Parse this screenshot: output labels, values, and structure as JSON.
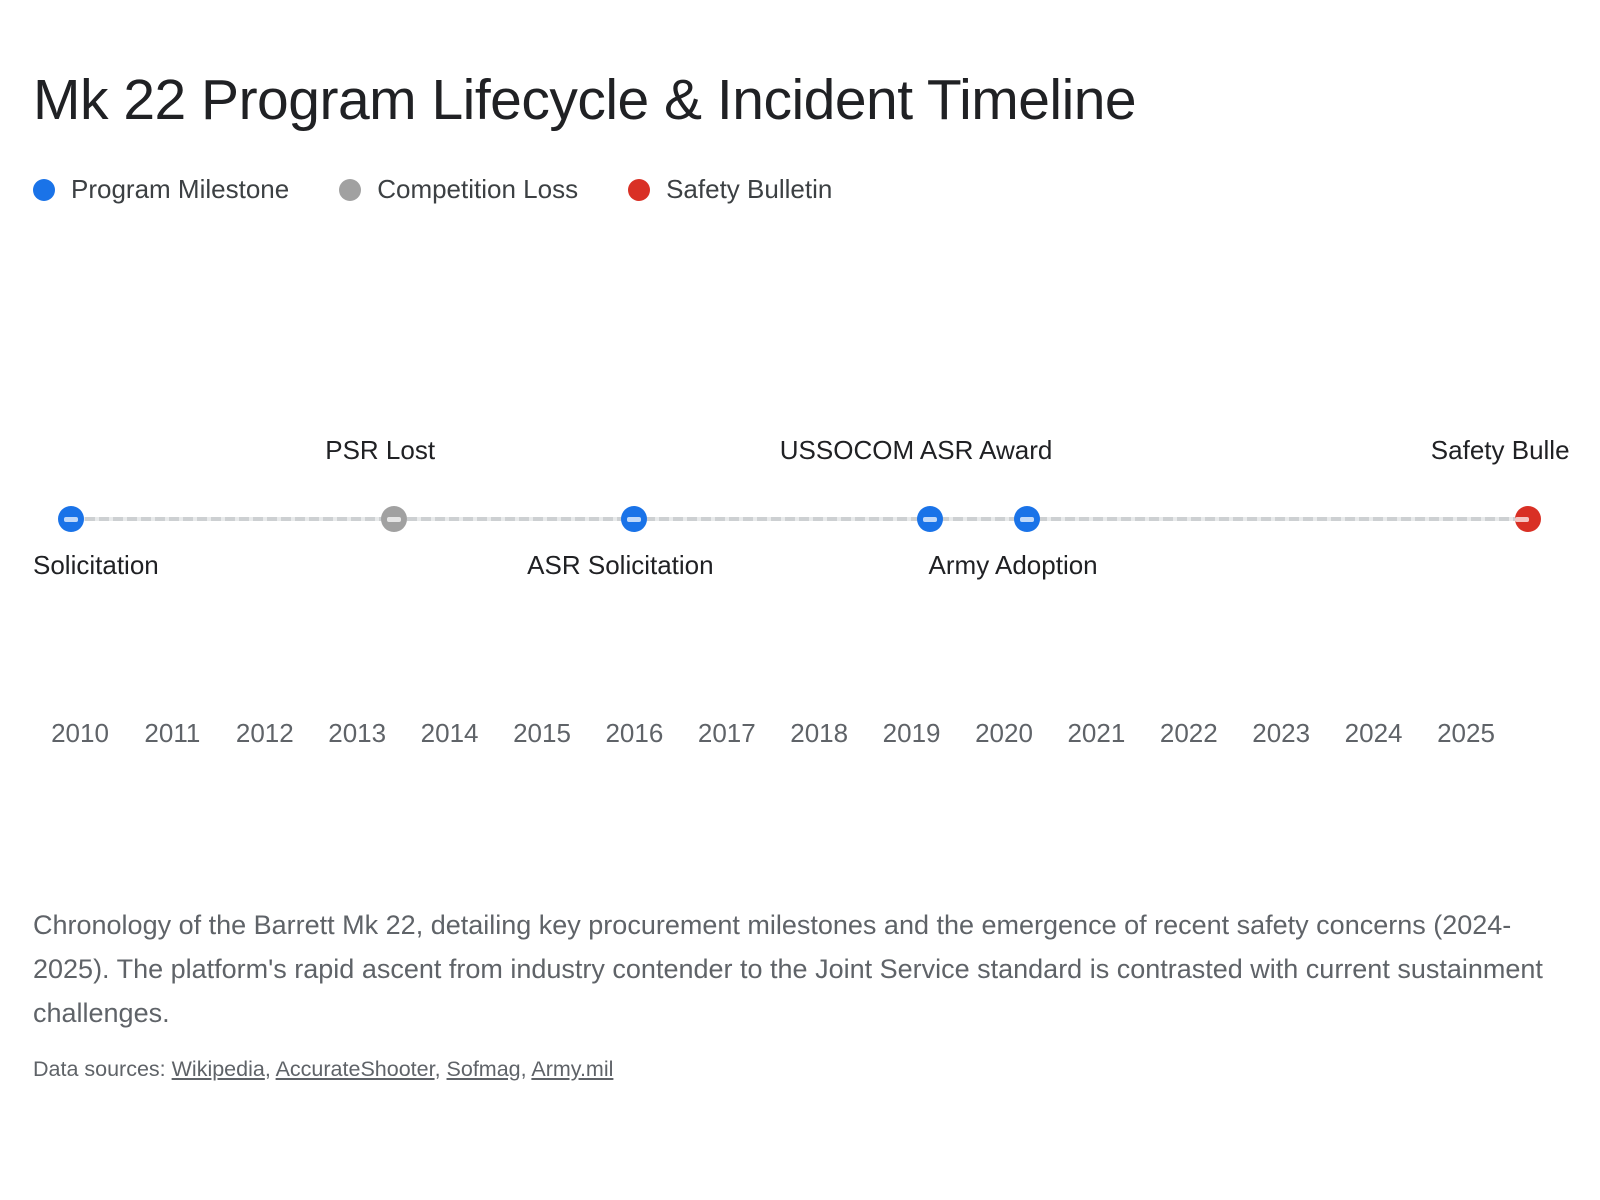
{
  "chart_data": {
    "type": "timeline",
    "title": "Mk 22 Program Lifecycle & Incident Timeline",
    "legend": [
      {
        "label": "Program Milestone",
        "color": "#1a73e8"
      },
      {
        "label": "Competition Loss",
        "color": "#a1a1a1"
      },
      {
        "label": "Safety Bulletin",
        "color": "#d93025"
      }
    ],
    "x_axis": {
      "ticks": [
        2010,
        2011,
        2012,
        2013,
        2014,
        2015,
        2016,
        2017,
        2018,
        2019,
        2020,
        2021,
        2022,
        2023,
        2024,
        2025
      ],
      "min": 2009.9,
      "max": 2025.7,
      "grid": false
    },
    "line_color": "#cdd0d2",
    "events": [
      {
        "label": "Solicitation",
        "year": 2009.9,
        "category": "Program Milestone",
        "label_position": "below"
      },
      {
        "label": "PSR Lost",
        "year": 2013.4,
        "category": "Competition Loss",
        "label_position": "above"
      },
      {
        "label": "ASR Solicitation",
        "year": 2016.0,
        "category": "Program Milestone",
        "label_position": "below"
      },
      {
        "label": "USSOCOM ASR Award",
        "year": 2019.2,
        "category": "Program Milestone",
        "label_position": "above"
      },
      {
        "label": "Army Adoption",
        "year": 2020.25,
        "category": "Program Milestone",
        "label_position": "below"
      },
      {
        "label": "Safety Bulletin",
        "year": 2025.67,
        "category": "Safety Bulletin",
        "label_position": "above"
      }
    ]
  },
  "caption": {
    "text": "Chronology of the Barrett Mk 22, detailing key procurement milestones and the emergence of recent safety concerns (2024-2025). The platform's rapid ascent from industry contender to the Joint Service standard is contrasted with current sustainment challenges."
  },
  "sources": {
    "prefix": "Data sources: ",
    "links": [
      "Wikipedia",
      "AccurateShooter",
      "Sofmag",
      "Army.mil"
    ],
    "separator": ", "
  }
}
